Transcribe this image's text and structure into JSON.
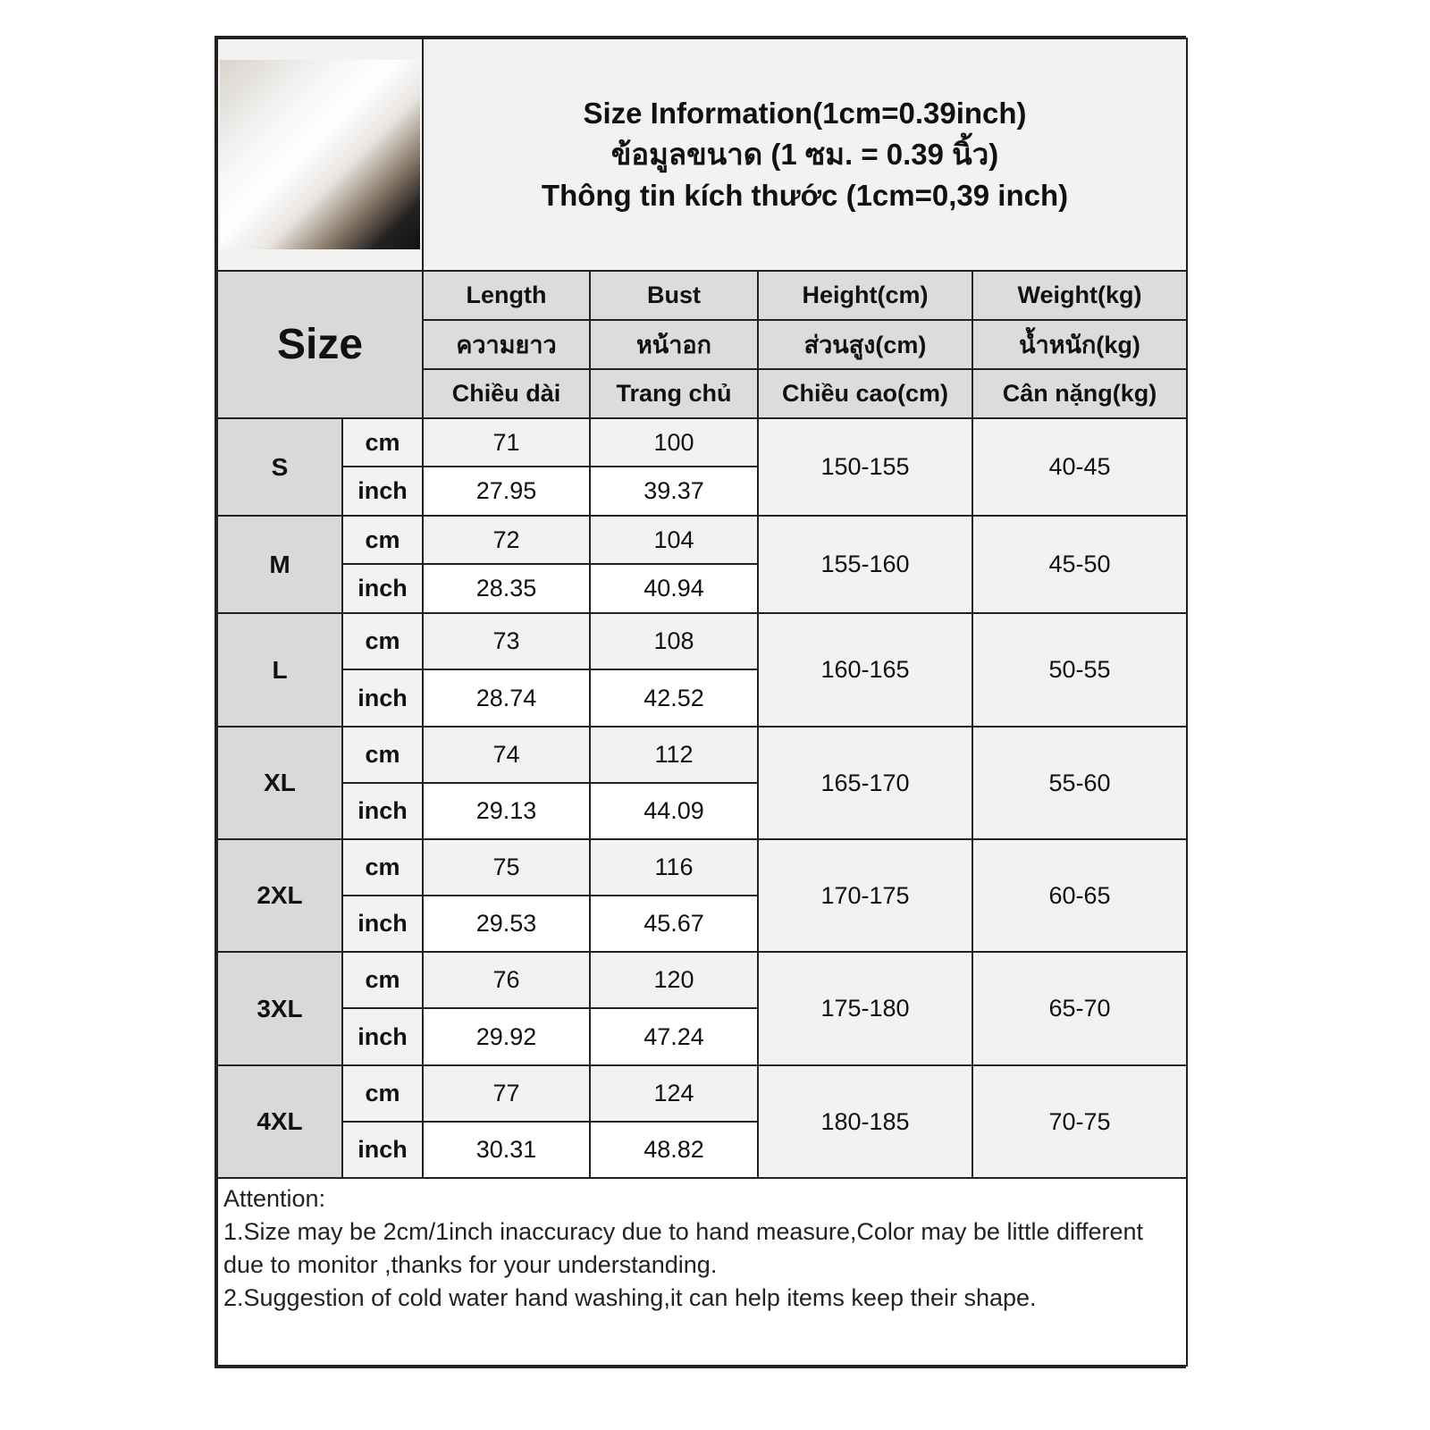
{
  "title_lines": [
    "Size Information(1cm=0.39inch)",
    "ข้อมูลขนาด (1 ซม. = 0.39 นิ้ว)",
    "Thông tin kích thước (1cm=0,39 inch)"
  ],
  "size_label": "Size",
  "columns": [
    {
      "en": "Length",
      "th": "ความยาว",
      "vi": "Chiều dài"
    },
    {
      "en": "Bust",
      "th": "หน้าอก",
      "vi": "Trang chủ"
    },
    {
      "en": "Height(cm)",
      "th": "ส่วนสูง(cm)",
      "vi": "Chiều cao(cm)"
    },
    {
      "en": "Weight(kg)",
      "th": "น้ำหนัก(kg)",
      "vi": "Cân nặng(kg)"
    }
  ],
  "units": {
    "cm": "cm",
    "inch": "inch"
  },
  "rows": [
    {
      "size": "S",
      "length_cm": "71",
      "length_inch": "27.95",
      "bust_cm": "100",
      "bust_inch": "39.37",
      "height": "150-155",
      "weight": "40-45"
    },
    {
      "size": "M",
      "length_cm": "72",
      "length_inch": "28.35",
      "bust_cm": "104",
      "bust_inch": "40.94",
      "height": "155-160",
      "weight": "45-50"
    },
    {
      "size": "L",
      "length_cm": "73",
      "length_inch": "28.74",
      "bust_cm": "108",
      "bust_inch": "42.52",
      "height": "160-165",
      "weight": "50-55"
    },
    {
      "size": "XL",
      "length_cm": "74",
      "length_inch": "29.13",
      "bust_cm": "112",
      "bust_inch": "44.09",
      "height": "165-170",
      "weight": "55-60"
    },
    {
      "size": "2XL",
      "length_cm": "75",
      "length_inch": "29.53",
      "bust_cm": "116",
      "bust_inch": "45.67",
      "height": "170-175",
      "weight": "60-65"
    },
    {
      "size": "3XL",
      "length_cm": "76",
      "length_inch": "29.92",
      "bust_cm": "120",
      "bust_inch": "47.24",
      "height": "175-180",
      "weight": "65-70"
    },
    {
      "size": "4XL",
      "length_cm": "77",
      "length_inch": "30.31",
      "bust_cm": "124",
      "bust_inch": "48.82",
      "height": "180-185",
      "weight": "70-75"
    }
  ],
  "attention": {
    "heading": "Attention:",
    "lines": [
      "1.Size may be 2cm/1inch inaccuracy due to hand measure,Color may be little different due to monitor ,thanks for your understanding.",
      "2.Suggestion of cold water hand washing,it can help items keep their shape."
    ]
  }
}
